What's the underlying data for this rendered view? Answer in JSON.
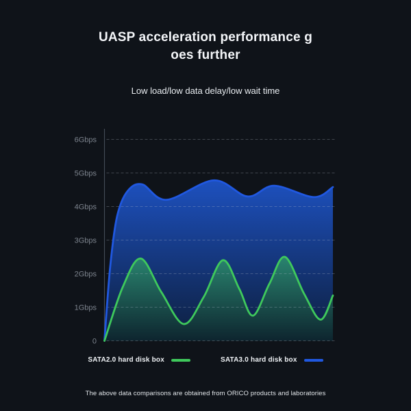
{
  "header": {
    "title": "UASP acceleration performance goes further",
    "title_lines": [
      "UASP acceleration performance g",
      "oes further"
    ],
    "subtitle": "Low load/low data delay/low wait time"
  },
  "footer": {
    "note": "The above data comparisons are obtained from ORICO products and laboratories"
  },
  "colors": {
    "background": "#0f1319",
    "grid": "rgba(178,188,202,0.30)",
    "axis": "#434b56",
    "tick_label": "#7c838d",
    "sata2_green": "#3fc95c",
    "sata3_blue": "#2058e0"
  },
  "chart_data": {
    "type": "area",
    "title": "",
    "xlabel": "",
    "ylabel": "",
    "grid": "horizontal-dashed",
    "legend_position": "bottom",
    "ylim": [
      0,
      6.5
    ],
    "yticks": [
      {
        "value": 6,
        "label": "6Gbps"
      },
      {
        "value": 5,
        "label": "5Gbps"
      },
      {
        "value": 4,
        "label": "4Gbps"
      },
      {
        "value": 3,
        "label": "3Gbps"
      },
      {
        "value": 2,
        "label": "2Gbps"
      },
      {
        "value": 1,
        "label": "1Gbps"
      },
      {
        "value": 0,
        "label": "0"
      }
    ],
    "x_axis": {
      "tick_labels": "none",
      "units": "percent-of-test-run",
      "range": [
        0,
        100
      ]
    },
    "draw_order": [
      1,
      0
    ],
    "series": [
      {
        "name": "SATA2.0 hard disk box",
        "line_color": "#3fc95c",
        "fill_top": "rgba(58,195,98,0.55)",
        "fill_bottom": "rgba(14,42,34,0.55)",
        "peak_gbps": 2.5,
        "trough_gbps": 0.5,
        "points_pct_gbps": [
          [
            0,
            0
          ],
          [
            8,
            1.6
          ],
          [
            15.9,
            2.45
          ],
          [
            24.9,
            1.45
          ],
          [
            34.7,
            0.5
          ],
          [
            43.4,
            1.3
          ],
          [
            51.8,
            2.4
          ],
          [
            59,
            1.55
          ],
          [
            65,
            0.75
          ],
          [
            72.2,
            1.7
          ],
          [
            79,
            2.5
          ],
          [
            87.4,
            1.4
          ],
          [
            94.6,
            0.63
          ],
          [
            100,
            1.35
          ]
        ]
      },
      {
        "name": "SATA3.0 hard disk box",
        "line_color": "#2058e0",
        "fill_top": "rgba(30,84,200,0.95)",
        "fill_bottom": "rgba(13,32,66,0.90)",
        "peak_gbps": 4.78,
        "trough_gbps": 4.2,
        "points_pct_gbps": [
          [
            0,
            0
          ],
          [
            2.5,
            2.2
          ],
          [
            5.5,
            3.7
          ],
          [
            10,
            4.45
          ],
          [
            16.5,
            4.66
          ],
          [
            27.2,
            4.2
          ],
          [
            47.9,
            4.78
          ],
          [
            62.6,
            4.3
          ],
          [
            74.3,
            4.62
          ],
          [
            91.6,
            4.28
          ],
          [
            100,
            4.58
          ]
        ]
      }
    ]
  }
}
